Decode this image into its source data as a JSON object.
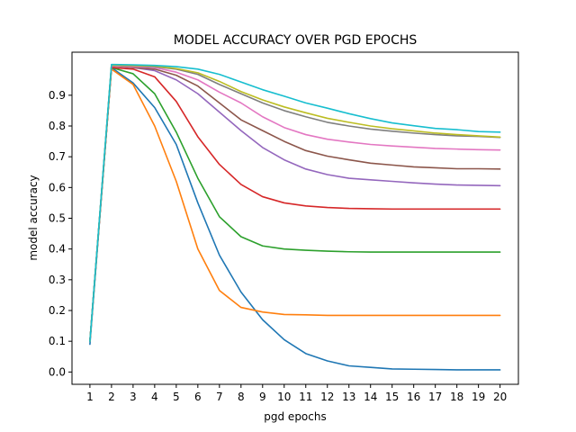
{
  "chart_data": {
    "type": "line",
    "title": "MODEL ACCURACY OVER PGD EPOCHS",
    "xlabel": "pgd epochs",
    "ylabel": "model accuracy",
    "x": [
      1,
      2,
      3,
      4,
      5,
      6,
      7,
      8,
      9,
      10,
      11,
      12,
      13,
      14,
      15,
      16,
      17,
      18,
      19,
      20
    ],
    "xlim": [
      0.17,
      20.85
    ],
    "ylim": [
      -0.04,
      1.04
    ],
    "yticks": [
      0.0,
      0.1,
      0.2,
      0.3,
      0.4,
      0.5,
      0.6,
      0.7,
      0.8,
      0.9
    ],
    "ytick_labels": [
      "0.0",
      "0.1",
      "0.2",
      "0.3",
      "0.4",
      "0.5",
      "0.6",
      "0.7",
      "0.8",
      "0.9"
    ],
    "xtick_labels": [
      "1",
      "2",
      "3",
      "4",
      "5",
      "6",
      "7",
      "8",
      "9",
      "10",
      "11",
      "12",
      "13",
      "14",
      "15",
      "16",
      "17",
      "18",
      "19",
      "20"
    ],
    "grid": false,
    "legend": "none",
    "series": [
      {
        "name": "series-1",
        "color": "#1f77b4",
        "values": [
          0.09,
          0.99,
          0.94,
          0.86,
          0.74,
          0.55,
          0.38,
          0.26,
          0.17,
          0.105,
          0.06,
          0.036,
          0.02,
          0.015,
          0.01,
          0.009,
          0.008,
          0.007,
          0.007,
          0.007
        ]
      },
      {
        "name": "series-2",
        "color": "#ff7f0e",
        "values": [
          0.1,
          0.985,
          0.935,
          0.8,
          0.62,
          0.4,
          0.265,
          0.21,
          0.195,
          0.187,
          0.186,
          0.184,
          0.184,
          0.184,
          0.184,
          0.184,
          0.184,
          0.184,
          0.184,
          0.184
        ]
      },
      {
        "name": "series-3",
        "color": "#2ca02c",
        "values": [
          0.1,
          0.99,
          0.97,
          0.905,
          0.78,
          0.63,
          0.505,
          0.44,
          0.41,
          0.4,
          0.396,
          0.393,
          0.391,
          0.39,
          0.39,
          0.39,
          0.39,
          0.39,
          0.39,
          0.39
        ]
      },
      {
        "name": "series-4",
        "color": "#d62728",
        "values": [
          0.1,
          0.99,
          0.985,
          0.96,
          0.88,
          0.765,
          0.675,
          0.61,
          0.57,
          0.55,
          0.54,
          0.535,
          0.532,
          0.531,
          0.53,
          0.53,
          0.53,
          0.53,
          0.53,
          0.53
        ]
      },
      {
        "name": "series-5",
        "color": "#9467bd",
        "values": [
          0.1,
          0.995,
          0.99,
          0.98,
          0.95,
          0.905,
          0.845,
          0.785,
          0.73,
          0.69,
          0.66,
          0.642,
          0.63,
          0.625,
          0.62,
          0.615,
          0.611,
          0.608,
          0.607,
          0.606
        ]
      },
      {
        "name": "series-6",
        "color": "#8c564b",
        "values": [
          0.1,
          0.995,
          0.99,
          0.985,
          0.965,
          0.93,
          0.875,
          0.82,
          0.785,
          0.75,
          0.72,
          0.702,
          0.69,
          0.679,
          0.673,
          0.667,
          0.664,
          0.661,
          0.661,
          0.66
        ]
      },
      {
        "name": "series-7",
        "color": "#e377c2",
        "values": [
          0.1,
          0.995,
          0.993,
          0.99,
          0.975,
          0.95,
          0.91,
          0.875,
          0.83,
          0.795,
          0.772,
          0.757,
          0.748,
          0.74,
          0.735,
          0.731,
          0.727,
          0.725,
          0.723,
          0.722
        ]
      },
      {
        "name": "series-8",
        "color": "#7f7f7f",
        "values": [
          0.1,
          0.997,
          0.996,
          0.993,
          0.985,
          0.968,
          0.935,
          0.905,
          0.875,
          0.85,
          0.83,
          0.812,
          0.8,
          0.79,
          0.783,
          0.777,
          0.772,
          0.768,
          0.766,
          0.763
        ]
      },
      {
        "name": "series-9",
        "color": "#bcbd22",
        "values": [
          0.1,
          0.998,
          0.997,
          0.995,
          0.987,
          0.973,
          0.945,
          0.912,
          0.885,
          0.862,
          0.843,
          0.825,
          0.812,
          0.8,
          0.791,
          0.784,
          0.777,
          0.772,
          0.768,
          0.764
        ]
      },
      {
        "name": "series-10",
        "color": "#17becf",
        "values": [
          0.1,
          1.0,
          0.999,
          0.997,
          0.993,
          0.985,
          0.968,
          0.943,
          0.918,
          0.897,
          0.875,
          0.858,
          0.84,
          0.824,
          0.81,
          0.801,
          0.792,
          0.788,
          0.782,
          0.78
        ]
      }
    ]
  }
}
